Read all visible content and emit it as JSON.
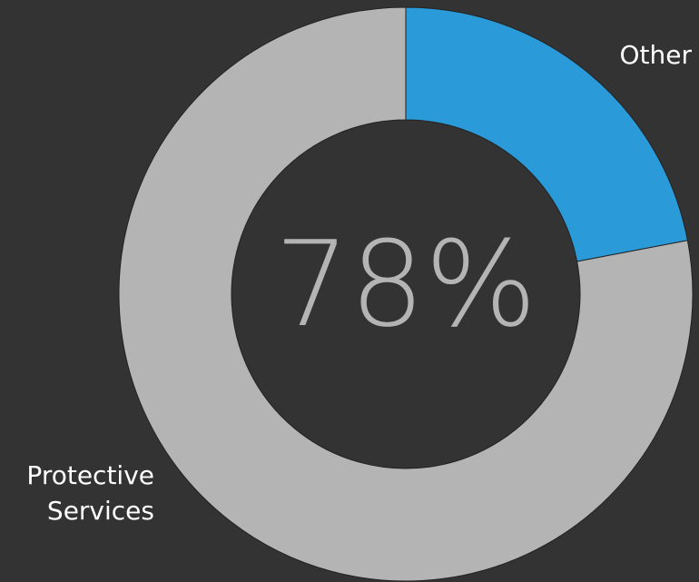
{
  "chart_data": {
    "type": "pie",
    "donut": true,
    "categories": [
      "Protective Services",
      "Other"
    ],
    "values": [
      78,
      22
    ],
    "center_label": "78%",
    "slice_labels": {
      "protective_line1": "Protective",
      "protective_line2": "Services",
      "other": "Other"
    },
    "colors": {
      "background": "#333333",
      "protective": "#b4b4b4",
      "other": "#2a9ad8",
      "center_text": "#b4b4b4",
      "label_text": "#ffffff",
      "outline": "#222222"
    }
  }
}
